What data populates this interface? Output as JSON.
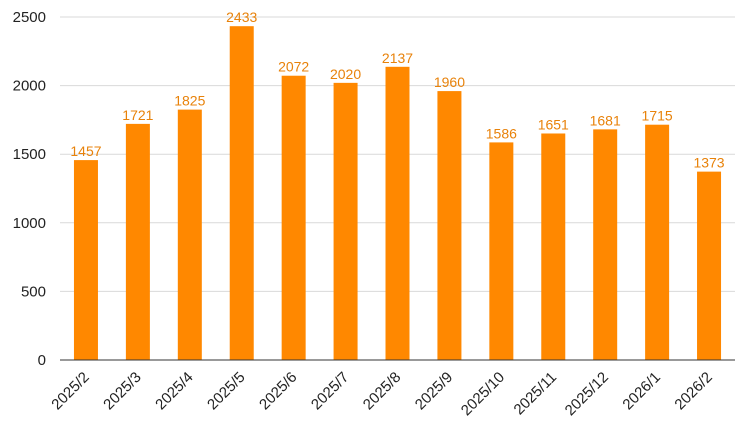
{
  "chart_data": {
    "type": "bar",
    "categories": [
      "2025/2",
      "2025/3",
      "2025/4",
      "2025/5",
      "2025/6",
      "2025/7",
      "2025/8",
      "2025/9",
      "2025/10",
      "2025/11",
      "2025/12",
      "2026/1",
      "2026/2"
    ],
    "series": [
      {
        "values": [
          1457,
          1721,
          1825,
          2433,
          2072,
          2020,
          2137,
          1960,
          1586,
          1651,
          1681,
          1715,
          1373
        ],
        "color": "#ff8800"
      }
    ],
    "data_labels": true,
    "data_label_color": "#e8820a",
    "title": "",
    "xlabel": "",
    "ylabel": "",
    "ylim": [
      0,
      2500
    ],
    "yticks": [
      0,
      500,
      1000,
      1500,
      2000,
      2500
    ],
    "grid": "horizontal",
    "grid_color": "#d9d9d9",
    "axis_color": "#333333",
    "x_tick_rotation": "-45deg",
    "legend": "none"
  }
}
